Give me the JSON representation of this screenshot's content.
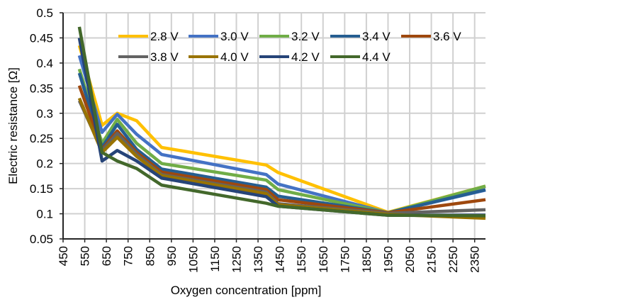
{
  "chart_data": {
    "type": "line",
    "title": "",
    "xlabel": "Oxygen concentration [ppm]",
    "ylabel": "Electric resistance [Ω]",
    "xlim": [
      450,
      2400
    ],
    "ylim": [
      0.05,
      0.5
    ],
    "grid": true,
    "legend_position": "top",
    "x_ticks": [
      450,
      550,
      650,
      750,
      850,
      950,
      1050,
      1150,
      1250,
      1350,
      1450,
      1550,
      1650,
      1750,
      1850,
      1950,
      2050,
      2150,
      2250,
      2350
    ],
    "y_ticks": [
      0.05,
      0.1,
      0.15,
      0.2,
      0.25,
      0.3,
      0.35,
      0.4,
      0.45,
      0.5
    ],
    "y_tick_labels": [
      "0.05",
      "0.1",
      "0.15",
      "0.2",
      "0.25",
      "0.3",
      "0.35",
      "0.4",
      "0.45",
      "0.5"
    ],
    "x": [
      525,
      630,
      700,
      790,
      905,
      1388,
      1443,
      1950,
      2400
    ],
    "series": [
      {
        "name": "2.8 V",
        "color": "#FFC000",
        "values": [
          0.435,
          0.276,
          0.3,
          0.285,
          0.232,
          0.197,
          0.182,
          0.103,
          0.155
        ]
      },
      {
        "name": "3.0 V",
        "color": "#4472C4",
        "values": [
          0.415,
          0.262,
          0.298,
          0.258,
          0.218,
          0.178,
          0.159,
          0.102,
          0.147
        ]
      },
      {
        "name": "3.2 V",
        "color": "#70AD47",
        "values": [
          0.388,
          0.24,
          0.288,
          0.24,
          0.2,
          0.167,
          0.148,
          0.102,
          0.155
        ]
      },
      {
        "name": "3.4 V",
        "color": "#255E91",
        "values": [
          0.38,
          0.232,
          0.278,
          0.228,
          0.189,
          0.153,
          0.135,
          0.102,
          0.148
        ]
      },
      {
        "name": "3.6 V",
        "color": "#9E480E",
        "values": [
          0.355,
          0.228,
          0.265,
          0.222,
          0.183,
          0.148,
          0.128,
          0.102,
          0.128
        ]
      },
      {
        "name": "3.8 V",
        "color": "#636363",
        "values": [
          0.325,
          0.226,
          0.26,
          0.218,
          0.178,
          0.143,
          0.12,
          0.101,
          0.108
        ]
      },
      {
        "name": "4.0 V",
        "color": "#997300",
        "values": [
          0.33,
          0.222,
          0.252,
          0.214,
          0.176,
          0.14,
          0.118,
          0.099,
          0.091
        ]
      },
      {
        "name": "4.2 V",
        "color": "#264478",
        "values": [
          0.45,
          0.205,
          0.226,
          0.205,
          0.171,
          0.134,
          0.115,
          0.097,
          0.097
        ]
      },
      {
        "name": "4.4 V",
        "color": "#43682B",
        "values": [
          0.472,
          0.222,
          0.205,
          0.19,
          0.157,
          0.121,
          0.115,
          0.097,
          0.096
        ]
      }
    ]
  }
}
